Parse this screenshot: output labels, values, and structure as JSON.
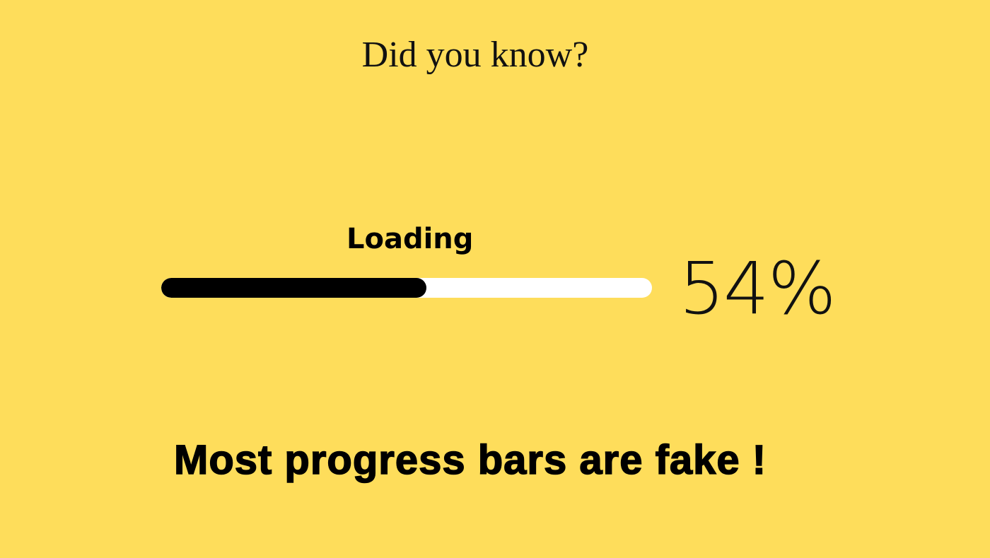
{
  "headline": "Did you know?",
  "progress": {
    "label": "Loading",
    "percent_text": "54%",
    "value_fraction": 0.54,
    "fill_color": "#000000",
    "track_color": "#FFFFFF"
  },
  "tagline": "Most progress bars are fake !",
  "colors": {
    "background": "#FEDD5B",
    "text": "#000000"
  }
}
